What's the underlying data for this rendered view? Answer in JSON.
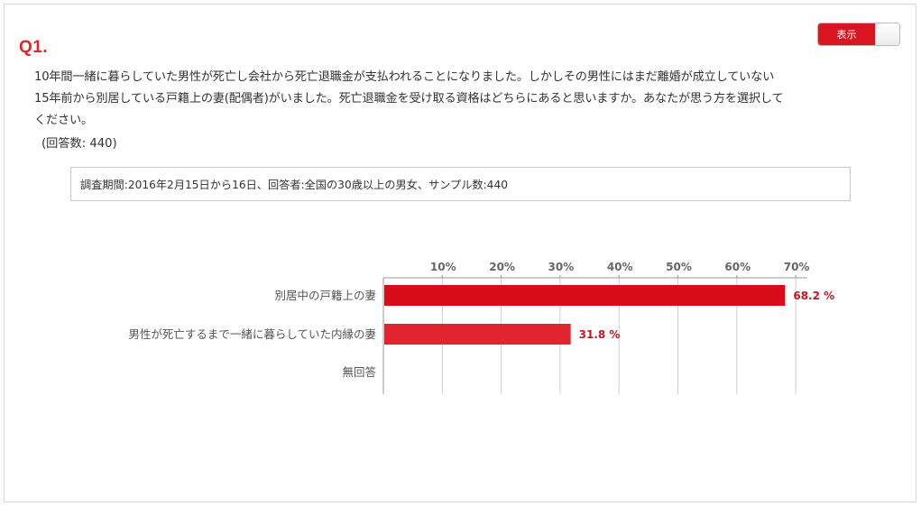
{
  "question": {
    "number": "Q1.",
    "text": "10年間一緒に暮らしていた男性が死亡し会社から死亡退職金が支払われることになりました。しかしその男性にはまだ離婚が成立していない15年前から別居している戸籍上の妻(配偶者)がいました。死亡退職金を受け取る資格はどちらにあると思いますか。あなたが思う方を選択してください。",
    "answer_count": "(回答数: 440)"
  },
  "toggle": {
    "label": "表示",
    "state": "on"
  },
  "survey_info": "調査期間:2016年2月15日から16日、回答者:全国の30歳以上の男女、サンプル数:440",
  "colors": {
    "accent": "#d9161f",
    "bar1": "#d70c18",
    "bar2": "#e0252f",
    "value_text": "#c8161e"
  },
  "chart_data": {
    "type": "bar",
    "orientation": "horizontal",
    "categories": [
      "別居中の戸籍上の妻",
      "男性が死亡するまで一緒に暮らしていた内縁の妻",
      "無回答"
    ],
    "values": [
      68.2,
      31.8,
      0
    ],
    "value_labels": [
      "68.2 %",
      "31.8 %",
      ""
    ],
    "x_ticks": [
      "10%",
      "20%",
      "30%",
      "40%",
      "50%",
      "60%",
      "70%"
    ],
    "xlim": [
      0,
      70
    ],
    "grid": true
  }
}
